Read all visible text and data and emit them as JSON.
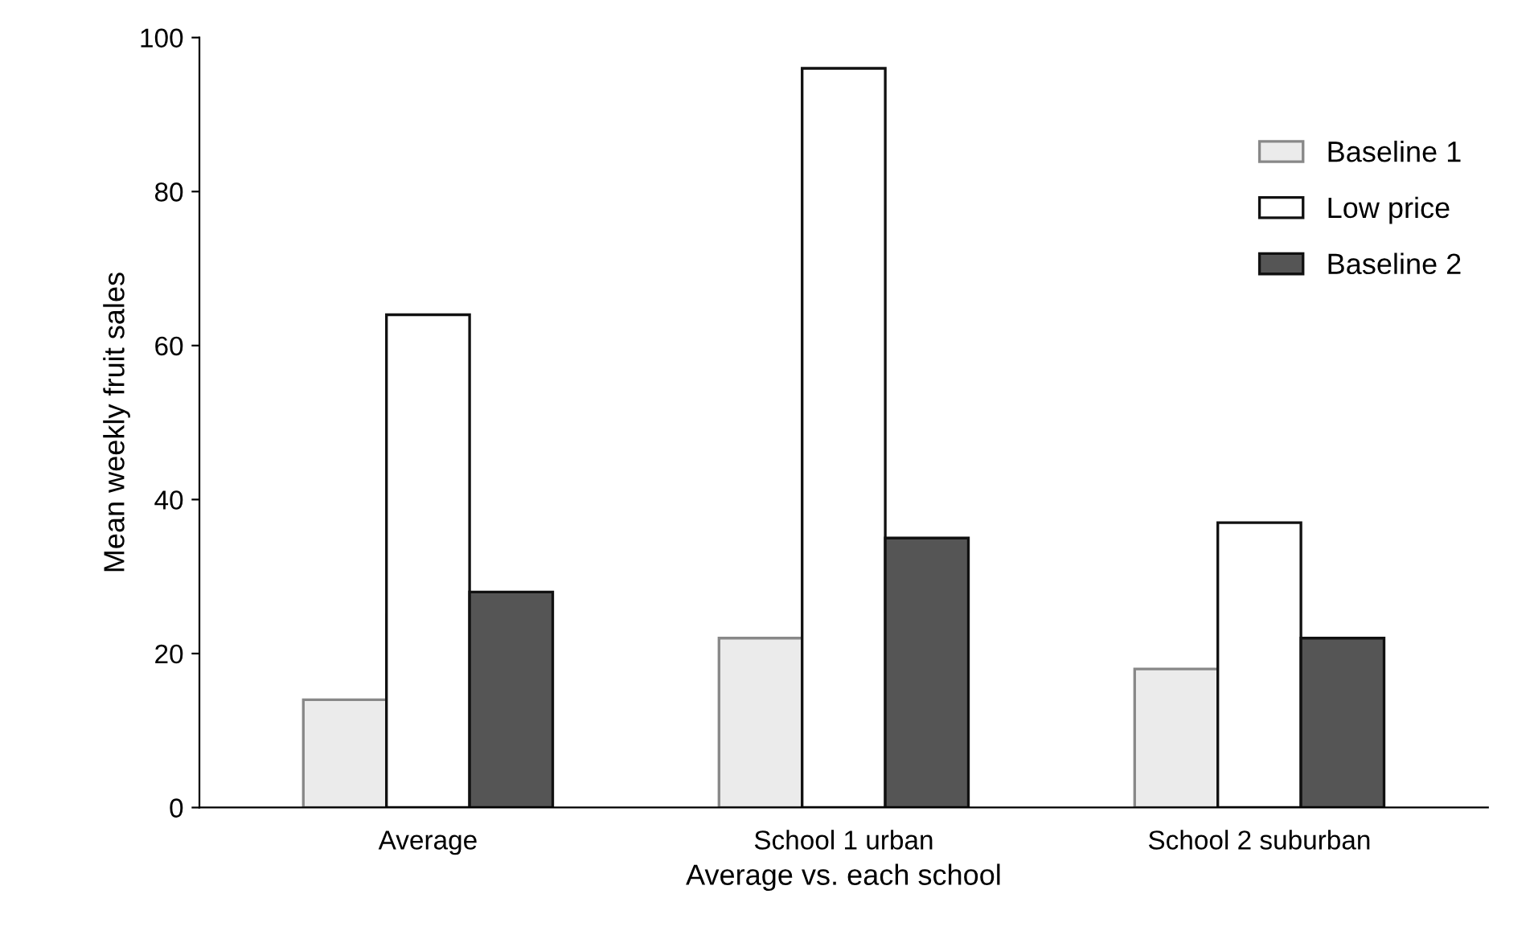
{
  "chart_data": {
    "type": "bar",
    "xlabel": "Average vs. each school",
    "ylabel": "Mean weekly fruit sales",
    "categories": [
      "Average",
      "School 1 urban",
      "School 2 suburban"
    ],
    "series": [
      {
        "name": "Baseline 1",
        "color": "#ebebeb",
        "values": [
          14,
          22,
          18
        ]
      },
      {
        "name": "Low price",
        "color": "#ffffff",
        "values": [
          64,
          96,
          37
        ]
      },
      {
        "name": "Baseline 2",
        "color": "#555555",
        "values": [
          28,
          35,
          22
        ]
      }
    ],
    "ylim": [
      0,
      100
    ],
    "yticks": [
      0,
      20,
      40,
      60,
      80,
      100
    ],
    "grid": false,
    "legend": "top right"
  }
}
